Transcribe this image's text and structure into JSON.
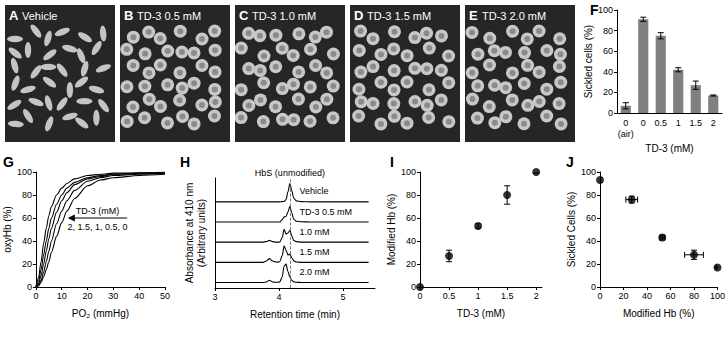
{
  "images": [
    {
      "panel": "A",
      "label": "Vehicle"
    },
    {
      "panel": "B",
      "label": "TD-3 0.5 mM"
    },
    {
      "panel": "C",
      "label": "TD-3 1.0 mM"
    },
    {
      "panel": "D",
      "label": "TD-3 1.5 mM"
    },
    {
      "panel": "E",
      "label": "TD-3 2.0 mM"
    }
  ],
  "chart_data": [
    {
      "panel": "F",
      "type": "bar",
      "categories": [
        "0\n(air)",
        "0",
        "0.5",
        "1",
        "1.5",
        "2"
      ],
      "values": [
        7,
        91,
        75,
        42,
        27,
        17
      ],
      "errors": [
        3,
        2,
        3,
        2,
        4,
        0.5
      ],
      "color": "#808080",
      "xlabel": "TD-3 (mM)",
      "ylabel": "Sickled cells (%)",
      "ylim": [
        0,
        100
      ],
      "yticks": [
        0,
        20,
        40,
        60,
        80,
        100
      ]
    },
    {
      "panel": "G",
      "type": "line",
      "marker": "none",
      "x": [
        0,
        1,
        2,
        3,
        4,
        5,
        6,
        8,
        10,
        12,
        15,
        20,
        25,
        30,
        40,
        50
      ],
      "series": [
        {
          "color": "#000000",
          "values": [
            0,
            1,
            4,
            9,
            15,
            22,
            30,
            44,
            56,
            66,
            77,
            88,
            93,
            95,
            97,
            98
          ]
        },
        {
          "color": "#000000",
          "values": [
            0,
            2,
            6,
            13,
            22,
            31,
            40,
            55,
            66,
            75,
            84,
            92,
            95,
            97,
            98,
            99
          ]
        },
        {
          "color": "#000000",
          "values": [
            0,
            3,
            10,
            20,
            31,
            42,
            51,
            65,
            75,
            82,
            89,
            94,
            96,
            98,
            99,
            99
          ]
        },
        {
          "color": "#000000",
          "values": [
            0,
            5,
            15,
            28,
            40,
            51,
            60,
            72,
            80,
            86,
            91,
            95,
            97,
            98,
            99,
            99
          ]
        },
        {
          "color": "#000000",
          "values": [
            0,
            8,
            22,
            38,
            51,
            62,
            70,
            80,
            86,
            90,
            94,
            97,
            98,
            99,
            99,
            100
          ]
        }
      ],
      "xlabel": "PO₂ (mmHg)",
      "ylabel": "oxyHb (%)",
      "xlim": [
        0,
        50
      ],
      "xticks": [
        0,
        10,
        20,
        30,
        40,
        50
      ],
      "ylim": [
        0,
        100
      ],
      "yticks": [
        0,
        20,
        40,
        60,
        80,
        100
      ],
      "annotations": [
        "TD-3 (mM)",
        "2, 1.5, 1, 0.5, 0"
      ]
    },
    {
      "panel": "H",
      "type": "line",
      "marker": "none",
      "tick_labels": "x",
      "x": [
        3.0,
        3.5,
        3.75,
        3.8,
        3.85,
        3.9,
        3.95,
        3.98,
        4.01,
        4.05,
        4.08,
        4.11,
        4.14,
        4.17,
        4.2,
        4.23,
        4.27,
        4.35,
        4.5,
        5.0,
        5.4
      ],
      "series": [
        {
          "name": "Vehicle",
          "color": "#000000",
          "values": [
            4.7,
            4.7,
            4.7,
            4.7,
            4.7,
            4.7,
            4.7,
            4.7,
            4.7,
            4.71,
            4.72,
            4.82,
            5.25,
            5.7,
            5.3,
            4.9,
            4.75,
            4.71,
            4.7,
            4.7,
            4.7
          ]
        },
        {
          "name": "TD-3 0.5 mM",
          "color": "#000000",
          "values": [
            3.6,
            3.6,
            3.6,
            3.6,
            3.6,
            3.6,
            3.6,
            3.6,
            3.6,
            3.72,
            3.88,
            3.9,
            4.15,
            4.45,
            4.1,
            3.75,
            3.64,
            3.61,
            3.6,
            3.6,
            3.6
          ]
        },
        {
          "name": "1.0 mM",
          "color": "#000000",
          "values": [
            2.5,
            2.5,
            2.5,
            2.53,
            2.6,
            2.53,
            2.5,
            2.5,
            2.5,
            2.75,
            3.2,
            2.95,
            3.0,
            3.15,
            2.85,
            2.6,
            2.53,
            2.5,
            2.5,
            2.5,
            2.5
          ]
        },
        {
          "name": "1.5 mM",
          "color": "#000000",
          "values": [
            1.4,
            1.4,
            1.4,
            1.47,
            1.6,
            1.47,
            1.42,
            1.41,
            1.43,
            1.75,
            2.3,
            2.05,
            1.8,
            1.85,
            1.65,
            1.48,
            1.42,
            1.4,
            1.4,
            1.4,
            1.4
          ]
        },
        {
          "name": "2.0 mM",
          "color": "#000000",
          "values": [
            0.3,
            0.3,
            0.3,
            0.33,
            0.42,
            0.33,
            0.31,
            0.31,
            0.33,
            0.6,
            1.2,
            1.3,
            0.9,
            0.6,
            0.42,
            0.34,
            0.31,
            0.3,
            0.3,
            0.3,
            0.3
          ]
        }
      ],
      "xlabel": "Retention time (min)",
      "ylabel": "Absorbance at 410 nm\n(Arbitrary units)",
      "xlim": [
        3,
        5.5
      ],
      "xticks": [
        3,
        4,
        5
      ],
      "ylim": [
        0,
        6
      ],
      "dashed_x": 4.17,
      "annotations": [
        "HbS (unmodified)"
      ]
    },
    {
      "panel": "I",
      "type": "scatter",
      "marker": "circle",
      "color": "#000000",
      "x": [
        0,
        0.5,
        1,
        1.5,
        2
      ],
      "values": [
        0,
        27,
        53,
        80,
        100
      ],
      "errors": [
        0,
        5,
        2,
        8,
        1
      ],
      "xlabel": "TD-3 (mM)",
      "ylabel": "Modified Hb (%)",
      "xlim": [
        0,
        2.1
      ],
      "xticks": [
        0,
        0.5,
        1,
        1.5,
        2
      ],
      "ylim": [
        0,
        100
      ],
      "yticks": [
        0,
        20,
        40,
        60,
        80,
        100
      ]
    },
    {
      "panel": "J",
      "type": "scatter",
      "marker": "circle",
      "color": "#000000",
      "x": [
        0,
        27,
        53,
        80,
        100
      ],
      "values": [
        93,
        76,
        43,
        28,
        17
      ],
      "x_errors": [
        0,
        5,
        2,
        8,
        1
      ],
      "errors": [
        2,
        3,
        2,
        4,
        0.5
      ],
      "xlabel": "Modified Hb (%)",
      "ylabel": "Sickled Cells (%)",
      "xlim": [
        0,
        100
      ],
      "xticks": [
        0,
        20,
        40,
        60,
        80,
        100
      ],
      "ylim": [
        0,
        100
      ],
      "yticks": [
        0,
        20,
        40,
        60,
        80,
        100
      ]
    }
  ]
}
